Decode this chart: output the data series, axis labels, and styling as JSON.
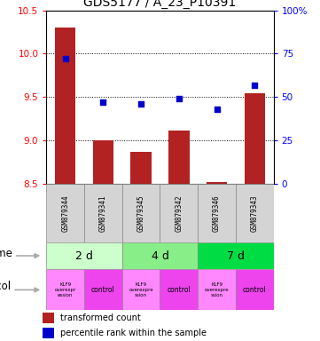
{
  "title": "GDS5177 / A_23_P10391",
  "samples": [
    "GSM879344",
    "GSM879341",
    "GSM879345",
    "GSM879342",
    "GSM879346",
    "GSM879343"
  ],
  "transformed_counts": [
    10.3,
    9.0,
    8.87,
    9.12,
    8.52,
    9.55
  ],
  "percentile_ranks": [
    72,
    47,
    46,
    49,
    43,
    57
  ],
  "bar_bottom": 8.5,
  "ylim_left": [
    8.5,
    10.5
  ],
  "ylim_right": [
    0,
    100
  ],
  "yticks_left": [
    8.5,
    9.0,
    9.5,
    10.0,
    10.5
  ],
  "yticks_right": [
    0,
    25,
    50,
    75,
    100
  ],
  "ytick_labels_right": [
    "0",
    "25",
    "50",
    "75",
    "100%"
  ],
  "bar_color": "#b22222",
  "dot_color": "#0000cc",
  "time_colors": [
    "#ccffcc",
    "#88ee88",
    "#00dd44"
  ],
  "time_labels": [
    "2 d",
    "4 d",
    "7 d"
  ],
  "proto_colors_klf": "#ff88ff",
  "proto_colors_ctrl": "#ee44ee",
  "proto_labels_klf": [
    "KLF9\noverexpr\nession",
    "KLF9\noverexpre\nssion",
    "KLF9\noverexpre\nssion"
  ],
  "legend_red_label": "transformed count",
  "legend_blue_label": "percentile rank within the sample",
  "title_fontsize": 10,
  "tick_fontsize": 7.5
}
